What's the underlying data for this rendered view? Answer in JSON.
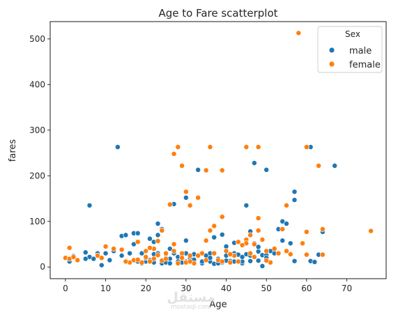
{
  "chart_data": {
    "type": "scatter",
    "title": "Age to Fare scatterplot",
    "xlabel": "Age",
    "ylabel": "fares",
    "xlim": [
      -3.8,
      79.8
    ],
    "ylim": [
      -25.6,
      538
    ],
    "xticks": [
      0,
      10,
      20,
      30,
      40,
      50,
      60,
      70
    ],
    "yticks": [
      0,
      100,
      200,
      300,
      400,
      500
    ],
    "grid": false,
    "legend": {
      "title": "Sex",
      "position": "top-right"
    },
    "colors": {
      "male": "#1f77b4",
      "female": "#ff7f0e"
    },
    "series": [
      {
        "name": "male",
        "color": "#1f77b4",
        "points": [
          [
            1,
            12
          ],
          [
            2,
            24
          ],
          [
            5,
            32
          ],
          [
            6,
            135
          ],
          [
            6,
            22
          ],
          [
            7,
            18
          ],
          [
            8,
            30
          ],
          [
            9,
            4
          ],
          [
            10,
            30
          ],
          [
            12,
            35
          ],
          [
            13,
            263
          ],
          [
            14,
            68
          ],
          [
            15,
            70
          ],
          [
            17,
            74
          ],
          [
            17,
            50
          ],
          [
            18,
            74
          ],
          [
            18,
            12
          ],
          [
            19,
            30
          ],
          [
            19,
            8
          ],
          [
            20,
            12
          ],
          [
            21,
            62
          ],
          [
            21,
            15
          ],
          [
            22,
            10
          ],
          [
            22,
            55
          ],
          [
            23,
            95
          ],
          [
            23,
            70
          ],
          [
            23,
            30
          ],
          [
            24,
            83
          ],
          [
            24,
            8
          ],
          [
            25,
            10
          ],
          [
            25,
            28
          ],
          [
            26,
            18
          ],
          [
            26,
            8
          ],
          [
            27,
            138
          ],
          [
            27,
            30
          ],
          [
            28,
            10
          ],
          [
            28,
            22
          ],
          [
            29,
            26
          ],
          [
            29,
            10
          ],
          [
            30,
            58
          ],
          [
            30,
            152
          ],
          [
            30,
            30
          ],
          [
            31,
            13
          ],
          [
            31,
            20
          ],
          [
            32,
            8
          ],
          [
            32,
            16
          ],
          [
            33,
            213
          ],
          [
            33,
            26
          ],
          [
            34,
            8
          ],
          [
            35,
            25
          ],
          [
            36,
            12
          ],
          [
            36,
            30
          ],
          [
            37,
            65
          ],
          [
            37,
            7
          ],
          [
            38,
            18
          ],
          [
            39,
            71
          ],
          [
            39,
            10
          ],
          [
            40,
            25
          ],
          [
            40,
            45
          ],
          [
            41,
            28
          ],
          [
            41,
            13
          ],
          [
            42,
            53
          ],
          [
            42,
            30
          ],
          [
            43,
            27
          ],
          [
            44,
            8
          ],
          [
            44,
            12
          ],
          [
            45,
            135
          ],
          [
            45,
            28
          ],
          [
            46,
            78
          ],
          [
            46,
            25
          ],
          [
            47,
            52
          ],
          [
            47,
            228
          ],
          [
            48,
            34
          ],
          [
            48,
            14
          ],
          [
            49,
            26
          ],
          [
            49,
            2
          ],
          [
            50,
            213
          ],
          [
            50,
            26
          ],
          [
            51,
            35
          ],
          [
            53,
            83
          ],
          [
            54,
            58
          ],
          [
            54,
            100
          ],
          [
            55,
            95
          ],
          [
            56,
            52
          ],
          [
            57,
            165
          ],
          [
            57,
            147
          ],
          [
            57,
            13
          ],
          [
            61,
            263
          ],
          [
            61,
            13
          ],
          [
            62,
            11
          ],
          [
            63,
            27
          ],
          [
            64,
            77
          ],
          [
            67,
            222
          ],
          [
            5,
            18
          ],
          [
            8,
            25
          ],
          [
            11,
            15
          ],
          [
            14,
            25
          ],
          [
            16,
            30
          ],
          [
            20,
            20
          ],
          [
            22,
            28
          ],
          [
            24,
            15
          ],
          [
            26,
            40
          ],
          [
            28,
            12
          ],
          [
            30,
            12
          ],
          [
            32,
            28
          ],
          [
            34,
            12
          ],
          [
            36,
            20
          ],
          [
            38,
            8
          ],
          [
            40,
            14
          ],
          [
            42,
            12
          ],
          [
            44,
            22
          ],
          [
            46,
            13
          ],
          [
            48,
            44
          ],
          [
            50,
            20
          ],
          [
            52,
            30
          ]
        ]
      },
      {
        "name": "female",
        "color": "#ff7f0e",
        "points": [
          [
            0,
            20
          ],
          [
            1,
            42
          ],
          [
            1,
            18
          ],
          [
            2,
            22
          ],
          [
            3,
            15
          ],
          [
            8,
            25
          ],
          [
            9,
            20
          ],
          [
            10,
            45
          ],
          [
            12,
            40
          ],
          [
            14,
            38
          ],
          [
            16,
            10
          ],
          [
            17,
            15
          ],
          [
            18,
            55
          ],
          [
            19,
            10
          ],
          [
            20,
            35
          ],
          [
            20,
            22
          ],
          [
            21,
            12
          ],
          [
            22,
            40
          ],
          [
            22,
            18
          ],
          [
            23,
            57
          ],
          [
            24,
            14
          ],
          [
            24,
            80
          ],
          [
            25,
            30
          ],
          [
            26,
            137
          ],
          [
            27,
            248
          ],
          [
            27,
            50
          ],
          [
            28,
            263
          ],
          [
            28,
            8
          ],
          [
            29,
            222
          ],
          [
            29,
            30
          ],
          [
            30,
            165
          ],
          [
            30,
            10
          ],
          [
            31,
            135
          ],
          [
            31,
            25
          ],
          [
            32,
            8
          ],
          [
            33,
            152
          ],
          [
            34,
            30
          ],
          [
            35,
            212
          ],
          [
            35,
            58
          ],
          [
            36,
            263
          ],
          [
            36,
            80
          ],
          [
            37,
            90
          ],
          [
            38,
            15
          ],
          [
            39,
            212
          ],
          [
            39,
            110
          ],
          [
            40,
            35
          ],
          [
            41,
            10
          ],
          [
            42,
            25
          ],
          [
            43,
            55
          ],
          [
            45,
            263
          ],
          [
            45,
            60
          ],
          [
            45,
            52
          ],
          [
            46,
            70
          ],
          [
            47,
            50
          ],
          [
            48,
            263
          ],
          [
            48,
            107
          ],
          [
            48,
            80
          ],
          [
            49,
            60
          ],
          [
            50,
            35
          ],
          [
            51,
            10
          ],
          [
            52,
            40
          ],
          [
            53,
            30
          ],
          [
            54,
            83
          ],
          [
            55,
            135
          ],
          [
            55,
            35
          ],
          [
            56,
            28
          ],
          [
            58,
            513
          ],
          [
            59,
            52
          ],
          [
            60,
            263
          ],
          [
            60,
            77
          ],
          [
            60,
            27
          ],
          [
            63,
            222
          ],
          [
            64,
            83
          ],
          [
            64,
            27
          ],
          [
            76,
            79
          ],
          [
            15,
            12
          ],
          [
            18,
            16
          ],
          [
            21,
            42
          ],
          [
            23,
            26
          ],
          [
            25,
            18
          ],
          [
            27,
            35
          ],
          [
            29,
            20
          ],
          [
            31,
            12
          ],
          [
            33,
            25
          ],
          [
            35,
            15
          ],
          [
            37,
            30
          ],
          [
            39,
            12
          ],
          [
            41,
            28
          ],
          [
            43,
            12
          ],
          [
            44,
            48
          ],
          [
            46,
            30
          ],
          [
            47,
            22
          ],
          [
            50,
            14
          ]
        ]
      }
    ]
  },
  "watermark": {
    "main": "مستقل",
    "sub": "mostaql.com"
  }
}
